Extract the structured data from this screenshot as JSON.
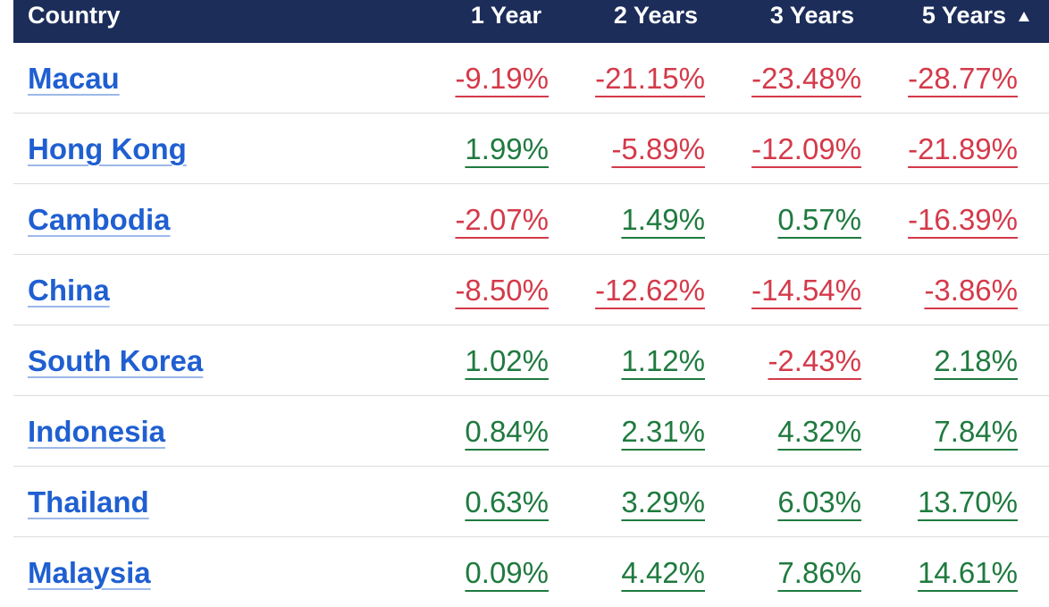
{
  "header": {
    "country": "Country",
    "y1": "1 Year",
    "y2": "2 Years",
    "y3": "3 Years",
    "y5": "5 Years",
    "sort_icon": "sort-ascending-icon"
  },
  "colors": {
    "header_bg": "#1c2d5a",
    "link": "#1f5fd1",
    "positive": "#1f7a3f",
    "negative": "#d43a4a"
  },
  "rows": [
    {
      "country": "Macau",
      "y1": "-9.19%",
      "y2": "-21.15%",
      "y3": "-23.48%",
      "y5": "-28.77%"
    },
    {
      "country": "Hong Kong",
      "y1": "1.99%",
      "y2": "-5.89%",
      "y3": "-12.09%",
      "y5": "-21.89%"
    },
    {
      "country": "Cambodia",
      "y1": "-2.07%",
      "y2": "1.49%",
      "y3": "0.57%",
      "y5": "-16.39%"
    },
    {
      "country": "China",
      "y1": "-8.50%",
      "y2": "-12.62%",
      "y3": "-14.54%",
      "y5": "-3.86%"
    },
    {
      "country": "South Korea",
      "y1": "1.02%",
      "y2": "1.12%",
      "y3": "-2.43%",
      "y5": "2.18%"
    },
    {
      "country": "Indonesia",
      "y1": "0.84%",
      "y2": "2.31%",
      "y3": "4.32%",
      "y5": "7.84%"
    },
    {
      "country": "Thailand",
      "y1": "0.63%",
      "y2": "3.29%",
      "y3": "6.03%",
      "y5": "13.70%"
    },
    {
      "country": "Malaysia",
      "y1": "0.09%",
      "y2": "4.42%",
      "y3": "7.86%",
      "y5": "14.61%"
    }
  ]
}
